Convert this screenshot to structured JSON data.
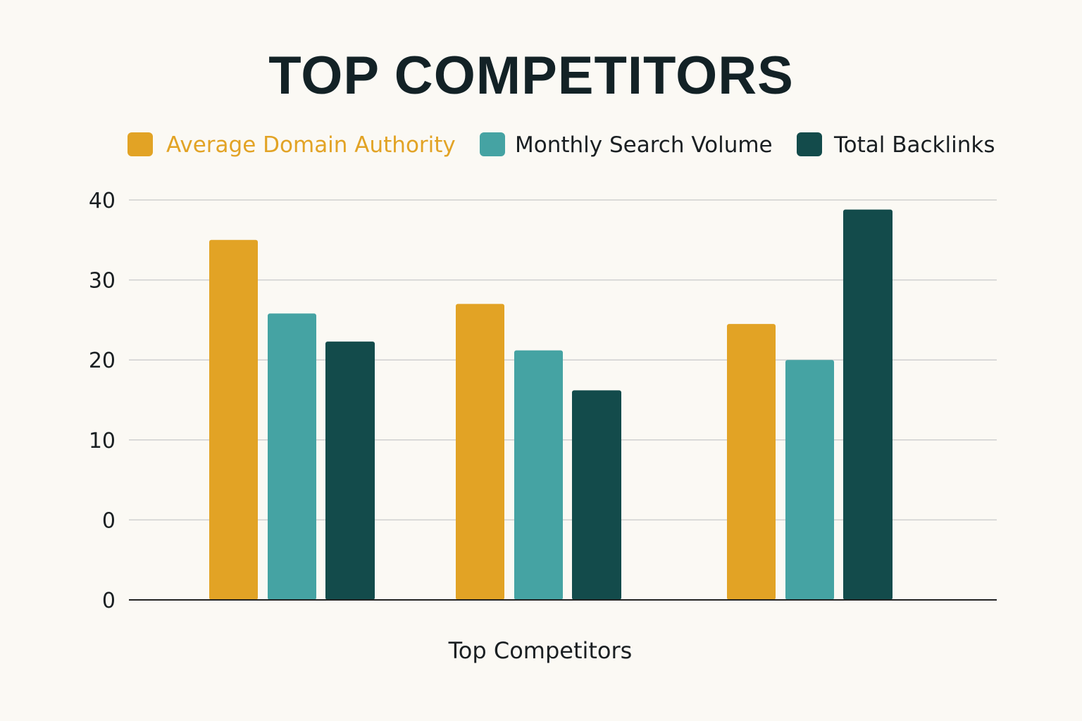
{
  "chart_data": {
    "type": "bar",
    "title": "TOP COMPETITORS",
    "xlabel": "Top Competitors",
    "ylabel": "",
    "categories": [
      "",
      "",
      ""
    ],
    "series": [
      {
        "name": "Average Domain Authority",
        "color": "#e2a325",
        "values": [
          35,
          27,
          24.5
        ]
      },
      {
        "name": "Monthly Search Volume",
        "color": "#45a3a3",
        "values": [
          25.8,
          21.2,
          20
        ]
      },
      {
        "name": "Total Backlinks",
        "color": "#134b4b",
        "values": [
          22.3,
          16.2,
          38.8
        ]
      }
    ],
    "y_tick_labels": [
      "0",
      "0",
      "10",
      "20",
      "30",
      "40"
    ],
    "ylim": [
      -10,
      40
    ],
    "grid": true,
    "legend_position": "top"
  },
  "colors": {
    "background": "#fbf9f4",
    "title": "#132226",
    "text": "#1a1f22",
    "gridline": "#cfcfcf",
    "axis": "#222222",
    "legend_first_label": "#e2a325"
  }
}
